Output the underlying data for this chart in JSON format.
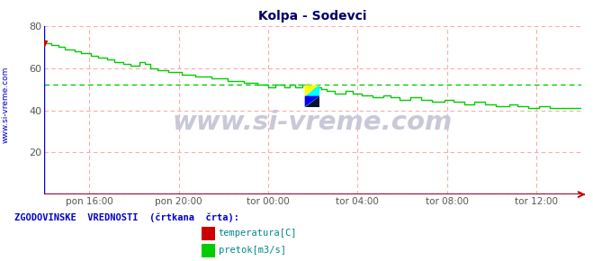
{
  "title": "Kolpa - Sodevci",
  "background_color": "#ffffff",
  "plot_bg_color": "#ffffff",
  "xlabel_ticks": [
    "pon 16:00",
    "pon 20:00",
    "tor 00:00",
    "tor 04:00",
    "tor 08:00",
    "tor 12:00"
  ],
  "ylim": [
    0,
    80
  ],
  "yticks": [
    20,
    40,
    60,
    80
  ],
  "grid_color": "#ffaaaa",
  "axis_color": "#0000cc",
  "arrow_color": "#cc0000",
  "temperature_color": "#cc0000",
  "flow_color": "#00cc00",
  "hist_flow_value": 52.0,
  "watermark_text": "www.si-vreme.com",
  "watermark_color": "#c8c8d8",
  "legend_label": "ZGODOVINSKE  VREDNOSTI  (črtkana  črta):",
  "temp_legend": "temperatura[C]",
  "flow_legend": "pretok[m3/s]",
  "title_color": "#000066",
  "left_label": "www.si-vreme.com",
  "left_label_color": "#0000cc",
  "tick_label_color": "#555555",
  "hist_temp_value": 0.3
}
